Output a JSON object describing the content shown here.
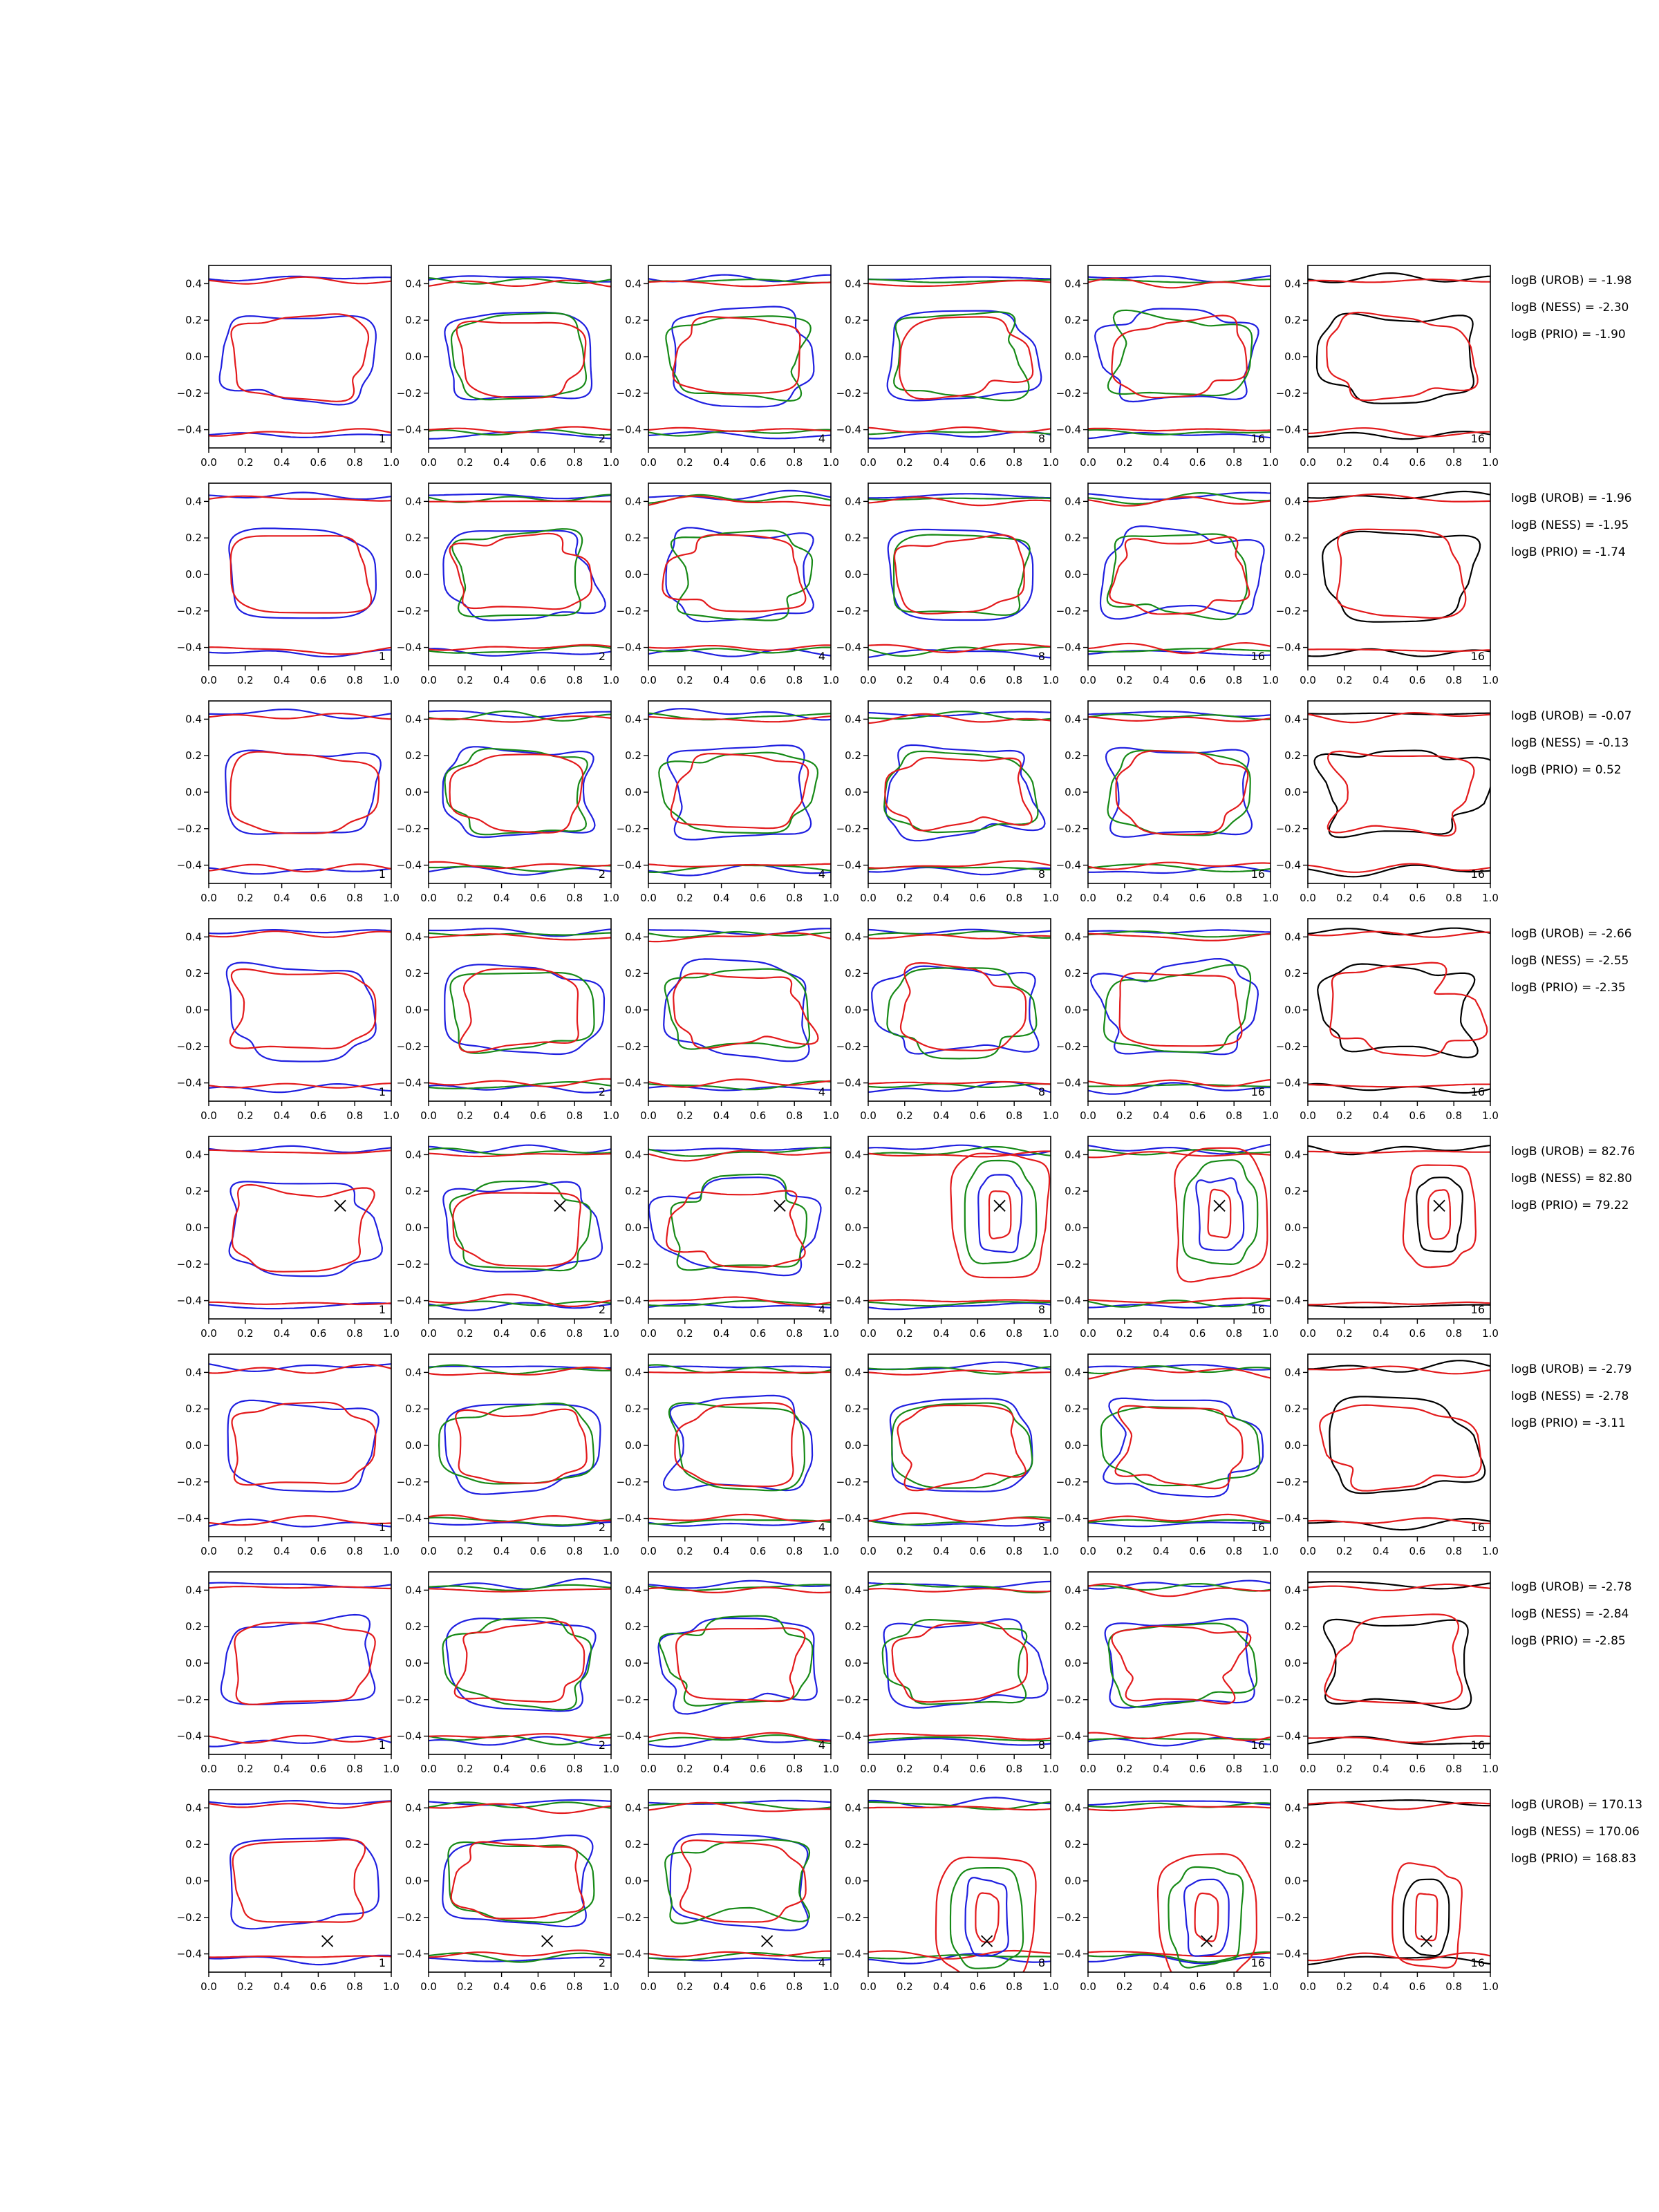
{
  "chart_data": {
    "type": "contour",
    "rows": 8,
    "cols": 6,
    "xlim": [
      0.0,
      1.0
    ],
    "ylim": [
      -0.5,
      0.5
    ],
    "x_ticks": [
      "0.0",
      "0.2",
      "0.4",
      "0.6",
      "0.8",
      "1.0"
    ],
    "y_ticks": [
      "−0.4",
      "−0.2",
      "0.0",
      "0.2",
      "0.4"
    ],
    "col_numbers": [
      "1",
      "2",
      "4",
      "8",
      "16",
      "16"
    ],
    "colors": {
      "red": "#e31a1c",
      "green": "#178a17",
      "blue": "#1f1fe0",
      "black": "#000000",
      "axes": "#000000"
    },
    "rows_data": [
      {
        "logB": [
          "logB (UROB) = -1.98",
          "logB (NESS) = -2.30",
          "logB (PRIO) = -1.90"
        ],
        "marker": null
      },
      {
        "logB": [
          "logB (UROB) = -1.96",
          "logB (NESS) = -1.95",
          "logB (PRIO) = -1.74"
        ],
        "marker": null
      },
      {
        "logB": [
          "logB (UROB) = -0.07",
          "logB (NESS) = -0.13",
          "logB (PRIO) = 0.52"
        ],
        "marker": null
      },
      {
        "logB": [
          "logB (UROB) = -2.66",
          "logB (NESS) = -2.55",
          "logB (PRIO) = -2.35"
        ],
        "marker": null
      },
      {
        "logB": [
          "logB (UROB) = 82.76",
          "logB (NESS) = 82.80",
          "logB (PRIO) = 79.22"
        ],
        "marker": [
          0.72,
          0.12
        ]
      },
      {
        "logB": [
          "logB (UROB) = -2.79",
          "logB (NESS) = -2.78",
          "logB (PRIO) = -3.11"
        ],
        "marker": null
      },
      {
        "logB": [
          "logB (UROB) = -2.78",
          "logB (NESS) = -2.84",
          "logB (PRIO) = -2.85"
        ],
        "marker": null
      },
      {
        "logB": [
          "logB (UROB) = 170.13",
          "logB (NESS) = 170.06",
          "logB (PRIO) = 168.83"
        ],
        "marker": [
          0.65,
          -0.33
        ]
      }
    ]
  }
}
